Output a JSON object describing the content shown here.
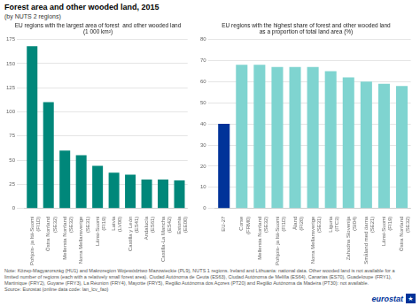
{
  "title": "Forest area and other wooded land, 2015",
  "subtitle": "(by NUTS 2 regions)",
  "annotations": [
    {
      "text": "Note: Közep-Magyarország (HU1) and Makroregion Województwo Mazowieckie (PL9), NUTS 1 regions. Ireland and Lithuania: national data. Other wooded land is not available for a\nlimited number of regions (each with a relatively small forest area). Ciudad Autónoma de Ceuta (ES63), Ciudad Autónoma de Melilla (ES64), Canarias (ES70), Guadeloupe (FRY1),\nMartinique (FRY2), Guyane (FRY3), La Réunion (FRY4), Mayotte (FRY5), Região Autónoma dos Açores (PT20) and Região Autónoma da Madeira (PT30): not available.\nSource: Eurostat (online data code: lan_lcv_fao)"
    },
    {
      "text": "eurostat",
      "color": "#003399"
    },
    {
      "text": "★",
      "color": "#003399"
    }
  ],
  "chart_data": [
    {
      "type": "bar",
      "title": "EU regions with the largest area of forest  and other wooded land\n(1 000 km²)",
      "categories": [
        "Pohjois- ja Itä-Suomi (FI1D)",
        "Östra Norrland (SE32)",
        "Mellersta Norrland (SE32)",
        "Norra Mellansverige (SE31)",
        "Länsi-Suomi (FI19)",
        "Latvia (LV00)",
        "Castilla y León (ES41)",
        "Andalucía (ES61)",
        "Castilla-La Mancha (ES42)",
        "Estonia (EE00)"
      ],
      "values": [
        168,
        110,
        60,
        55,
        44,
        37,
        35,
        30,
        30,
        29
      ],
      "color": "#00877a",
      "ylim": [
        0,
        175
      ],
      "yticks": [
        0,
        25,
        50,
        75,
        100,
        125,
        150,
        175
      ],
      "grid": true
    },
    {
      "type": "bar",
      "title": "EU regions with the highest share of forest and other wooded land\nas a proportion of total land area (%)",
      "categories": [
        "EU-27",
        "Corse (FRM0)",
        "Mellersta Norrland (SE32)",
        "Pohjois- ja Itä-Suomi (FI1D)",
        "Åland (FI20)",
        "Norra Mellansverige (SE31)",
        "Liguria (ITC3)",
        "Zahodna Slovenija (SI04)",
        "Småland med öarna (SE21)",
        "Länsi-Suomi (FI19)",
        "Östra Norrland (SE32)"
      ],
      "values": [
        40,
        68,
        68,
        67,
        67,
        67,
        65,
        62,
        60,
        59,
        58
      ],
      "colors": [
        "#003399",
        "#7fd4d0",
        "#7fd4d0",
        "#7fd4d0",
        "#7fd4d0",
        "#7fd4d0",
        "#7fd4d0",
        "#7fd4d0",
        "#7fd4d0",
        "#7fd4d0",
        "#7fd4d0"
      ],
      "ylim": [
        0,
        80
      ],
      "yticks": [
        0,
        10,
        20,
        30,
        40,
        50,
        60,
        70,
        80
      ],
      "grid": true
    }
  ]
}
